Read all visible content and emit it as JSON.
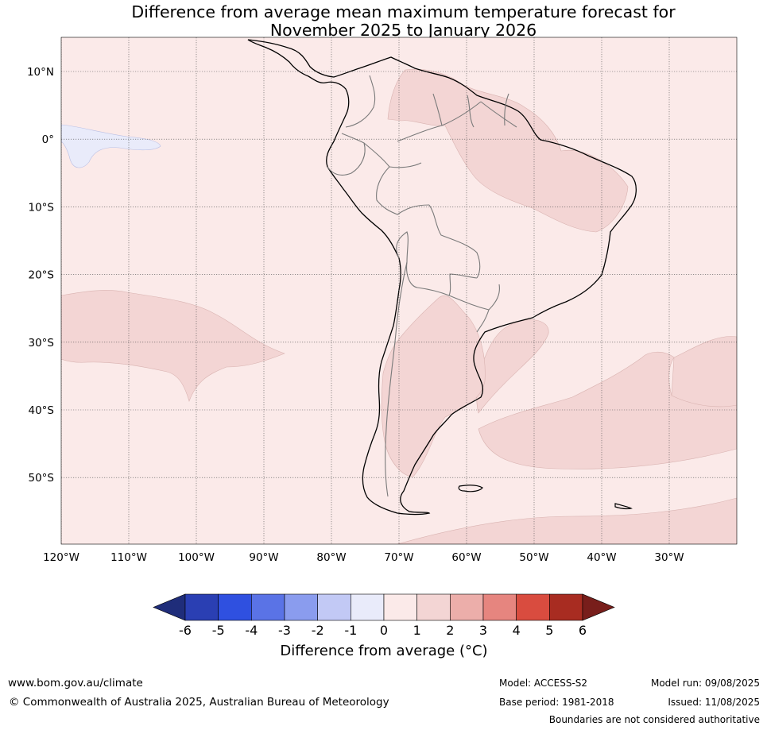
{
  "title": {
    "line1": "Difference from average mean maximum temperature forecast for",
    "line2": "November 2025 to January 2026"
  },
  "map": {
    "lat_labels": [
      "10°N",
      "0°",
      "10°S",
      "20°S",
      "30°S",
      "40°S",
      "50°S"
    ],
    "lon_labels": [
      "120°W",
      "110°W",
      "100°W",
      "90°W",
      "80°W",
      "70°W",
      "60°W",
      "50°W",
      "40°W",
      "30°W"
    ],
    "colors": {
      "ocean_fill": "#fbeae9",
      "land_fill": "#fbeae9",
      "warm_anomaly": "#f3d5d4",
      "cool_anomaly": "#e9ebfa",
      "coastline": "#000000",
      "borders": "#7a7a7a"
    }
  },
  "colorbar": {
    "label": "Difference from average (°C)",
    "ticks": [
      "-6",
      "-5",
      "-4",
      "-3",
      "-2",
      "-1",
      "0",
      "1",
      "2",
      "3",
      "4",
      "5",
      "6"
    ],
    "colors": [
      "#1f2d7a",
      "#2a3fb3",
      "#2f50e0",
      "#5a73e6",
      "#8a9cee",
      "#c2c9f5",
      "#e9ebfa",
      "#fbeae9",
      "#f3d5d4",
      "#ecaeaa",
      "#e6857f",
      "#d94c3f",
      "#a82c21",
      "#781e1b"
    ]
  },
  "footer": {
    "website": "www.bom.gov.au/climate",
    "copyright": "© Commonwealth of Australia 2025, Australian Bureau of Meteorology",
    "model": "Model: ACCESS-S2",
    "base_period": "Base period: 1981-2018",
    "model_run": "Model run: 09/08/2025",
    "issued": "Issued: 11/08/2025",
    "disclaimer": "Boundaries are not considered authoritative"
  }
}
